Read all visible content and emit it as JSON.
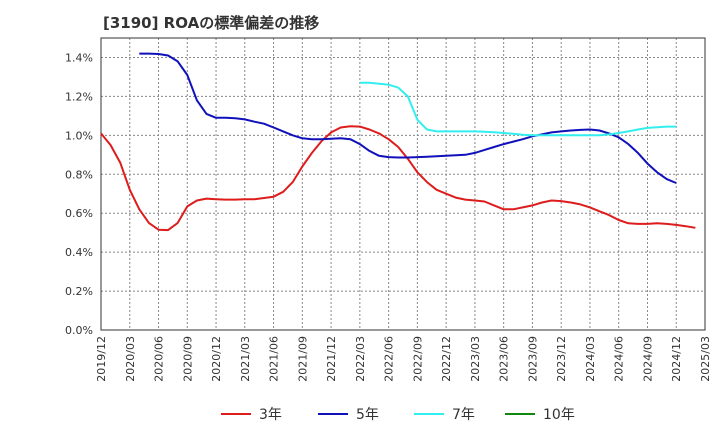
{
  "chart_data": {
    "type": "line",
    "title": "[3190]  ROAの標準偏差の推移",
    "xlabel": "",
    "ylabel": "",
    "x_ticks": [
      "2019/12",
      "2020/03",
      "2020/06",
      "2020/09",
      "2020/12",
      "2021/03",
      "2021/06",
      "2021/09",
      "2021/12",
      "2022/03",
      "2022/06",
      "2022/09",
      "2022/12",
      "2023/03",
      "2023/06",
      "2023/09",
      "2023/12",
      "2024/03",
      "2024/06",
      "2024/09",
      "2024/12",
      "2025/03"
    ],
    "y_ticks": [
      "0.0%",
      "0.2%",
      "0.4%",
      "0.6%",
      "0.8%",
      "1.0%",
      "1.2%",
      "1.4%"
    ],
    "ylim": [
      0,
      1.5
    ],
    "grid": true,
    "legend_position": "bottom",
    "series": [
      {
        "name": "3年",
        "color": "#dd1c1c",
        "points": [
          [
            "2019/12",
            1.01
          ],
          [
            "2020/01",
            0.95
          ],
          [
            "2020/02",
            0.86
          ],
          [
            "2020/03",
            0.72
          ],
          [
            "2020/04",
            0.62
          ],
          [
            "2020/05",
            0.55
          ],
          [
            "2020/06",
            0.515
          ],
          [
            "2020/07",
            0.513
          ],
          [
            "2020/08",
            0.55
          ],
          [
            "2020/09",
            0.635
          ],
          [
            "2020/10",
            0.665
          ],
          [
            "2020/11",
            0.675
          ],
          [
            "2020/12",
            0.672
          ],
          [
            "2021/01",
            0.67
          ],
          [
            "2021/02",
            0.67
          ],
          [
            "2021/03",
            0.672
          ],
          [
            "2021/04",
            0.672
          ],
          [
            "2021/05",
            0.678
          ],
          [
            "2021/06",
            0.685
          ],
          [
            "2021/07",
            0.71
          ],
          [
            "2021/08",
            0.76
          ],
          [
            "2021/09",
            0.84
          ],
          [
            "2021/10",
            0.91
          ],
          [
            "2021/11",
            0.97
          ],
          [
            "2021/12",
            1.015
          ],
          [
            "2022/01",
            1.04
          ],
          [
            "2022/02",
            1.047
          ],
          [
            "2022/03",
            1.045
          ],
          [
            "2022/04",
            1.03
          ],
          [
            "2022/05",
            1.01
          ],
          [
            "2022/06",
            0.98
          ],
          [
            "2022/07",
            0.94
          ],
          [
            "2022/08",
            0.88
          ],
          [
            "2022/09",
            0.81
          ],
          [
            "2022/10",
            0.76
          ],
          [
            "2022/11",
            0.72
          ],
          [
            "2022/12",
            0.7
          ],
          [
            "2023/01",
            0.68
          ],
          [
            "2023/02",
            0.67
          ],
          [
            "2023/03",
            0.665
          ],
          [
            "2023/04",
            0.66
          ],
          [
            "2023/05",
            0.64
          ],
          [
            "2023/06",
            0.62
          ],
          [
            "2023/07",
            0.62
          ],
          [
            "2023/08",
            0.63
          ],
          [
            "2023/09",
            0.64
          ],
          [
            "2023/10",
            0.655
          ],
          [
            "2023/11",
            0.665
          ],
          [
            "2023/12",
            0.662
          ],
          [
            "2024/01",
            0.655
          ],
          [
            "2024/02",
            0.645
          ],
          [
            "2024/03",
            0.63
          ],
          [
            "2024/04",
            0.61
          ],
          [
            "2024/05",
            0.59
          ],
          [
            "2024/06",
            0.565
          ],
          [
            "2024/07",
            0.548
          ],
          [
            "2024/08",
            0.545
          ],
          [
            "2024/09",
            0.545
          ],
          [
            "2024/10",
            0.548
          ],
          [
            "2024/11",
            0.545
          ],
          [
            "2024/12",
            0.54
          ],
          [
            "2025/01",
            0.533
          ],
          [
            "2025/02",
            0.525
          ]
        ]
      },
      {
        "name": "5年",
        "color": "#1111bb",
        "points": [
          [
            "2020/04",
            1.42
          ],
          [
            "2020/05",
            1.42
          ],
          [
            "2020/06",
            1.418
          ],
          [
            "2020/07",
            1.41
          ],
          [
            "2020/08",
            1.38
          ],
          [
            "2020/09",
            1.31
          ],
          [
            "2020/10",
            1.18
          ],
          [
            "2020/11",
            1.11
          ],
          [
            "2020/12",
            1.09
          ],
          [
            "2021/01",
            1.09
          ],
          [
            "2021/02",
            1.088
          ],
          [
            "2021/03",
            1.082
          ],
          [
            "2021/04",
            1.07
          ],
          [
            "2021/05",
            1.06
          ],
          [
            "2021/06",
            1.04
          ],
          [
            "2021/07",
            1.02
          ],
          [
            "2021/08",
            1.0
          ],
          [
            "2021/09",
            0.985
          ],
          [
            "2021/10",
            0.98
          ],
          [
            "2021/11",
            0.98
          ],
          [
            "2021/12",
            0.982
          ],
          [
            "2022/01",
            0.985
          ],
          [
            "2022/02",
            0.98
          ],
          [
            "2022/03",
            0.955
          ],
          [
            "2022/04",
            0.92
          ],
          [
            "2022/05",
            0.895
          ],
          [
            "2022/06",
            0.888
          ],
          [
            "2022/07",
            0.886
          ],
          [
            "2022/08",
            0.886
          ],
          [
            "2022/09",
            0.888
          ],
          [
            "2022/10",
            0.89
          ],
          [
            "2022/11",
            0.893
          ],
          [
            "2022/12",
            0.895
          ],
          [
            "2023/01",
            0.898
          ],
          [
            "2023/02",
            0.9
          ],
          [
            "2023/03",
            0.91
          ],
          [
            "2023/04",
            0.925
          ],
          [
            "2023/05",
            0.94
          ],
          [
            "2023/06",
            0.955
          ],
          [
            "2023/07",
            0.968
          ],
          [
            "2023/08",
            0.98
          ],
          [
            "2023/09",
            0.995
          ],
          [
            "2023/10",
            1.005
          ],
          [
            "2023/11",
            1.015
          ],
          [
            "2023/12",
            1.02
          ],
          [
            "2024/01",
            1.025
          ],
          [
            "2024/02",
            1.028
          ],
          [
            "2024/03",
            1.03
          ],
          [
            "2024/04",
            1.025
          ],
          [
            "2024/05",
            1.01
          ],
          [
            "2024/06",
            0.99
          ],
          [
            "2024/07",
            0.955
          ],
          [
            "2024/08",
            0.91
          ],
          [
            "2024/09",
            0.855
          ],
          [
            "2024/10",
            0.81
          ],
          [
            "2024/11",
            0.775
          ],
          [
            "2024/12",
            0.755
          ]
        ]
      },
      {
        "name": "7年",
        "color": "#33eeee",
        "points": [
          [
            "2022/03",
            1.27
          ],
          [
            "2022/04",
            1.27
          ],
          [
            "2022/05",
            1.265
          ],
          [
            "2022/06",
            1.26
          ],
          [
            "2022/07",
            1.245
          ],
          [
            "2022/08",
            1.2
          ],
          [
            "2022/09",
            1.08
          ],
          [
            "2022/10",
            1.03
          ],
          [
            "2022/11",
            1.02
          ],
          [
            "2022/12",
            1.02
          ],
          [
            "2023/01",
            1.02
          ],
          [
            "2023/02",
            1.02
          ],
          [
            "2023/03",
            1.02
          ],
          [
            "2023/04",
            1.018
          ],
          [
            "2023/05",
            1.016
          ],
          [
            "2023/06",
            1.012
          ],
          [
            "2023/07",
            1.008
          ],
          [
            "2023/08",
            1.003
          ],
          [
            "2023/09",
            1.0
          ],
          [
            "2023/10",
            1.0
          ],
          [
            "2023/11",
            1.0
          ],
          [
            "2023/12",
            1.0
          ],
          [
            "2024/01",
            1.0
          ],
          [
            "2024/02",
            1.0
          ],
          [
            "2024/03",
            1.0
          ],
          [
            "2024/04",
            1.0
          ],
          [
            "2024/05",
            1.005
          ],
          [
            "2024/06",
            1.012
          ],
          [
            "2024/07",
            1.02
          ],
          [
            "2024/08",
            1.03
          ],
          [
            "2024/09",
            1.038
          ],
          [
            "2024/10",
            1.042
          ],
          [
            "2024/11",
            1.045
          ],
          [
            "2024/12",
            1.045
          ]
        ]
      },
      {
        "name": "10年",
        "color": "#118811",
        "points": []
      }
    ]
  }
}
